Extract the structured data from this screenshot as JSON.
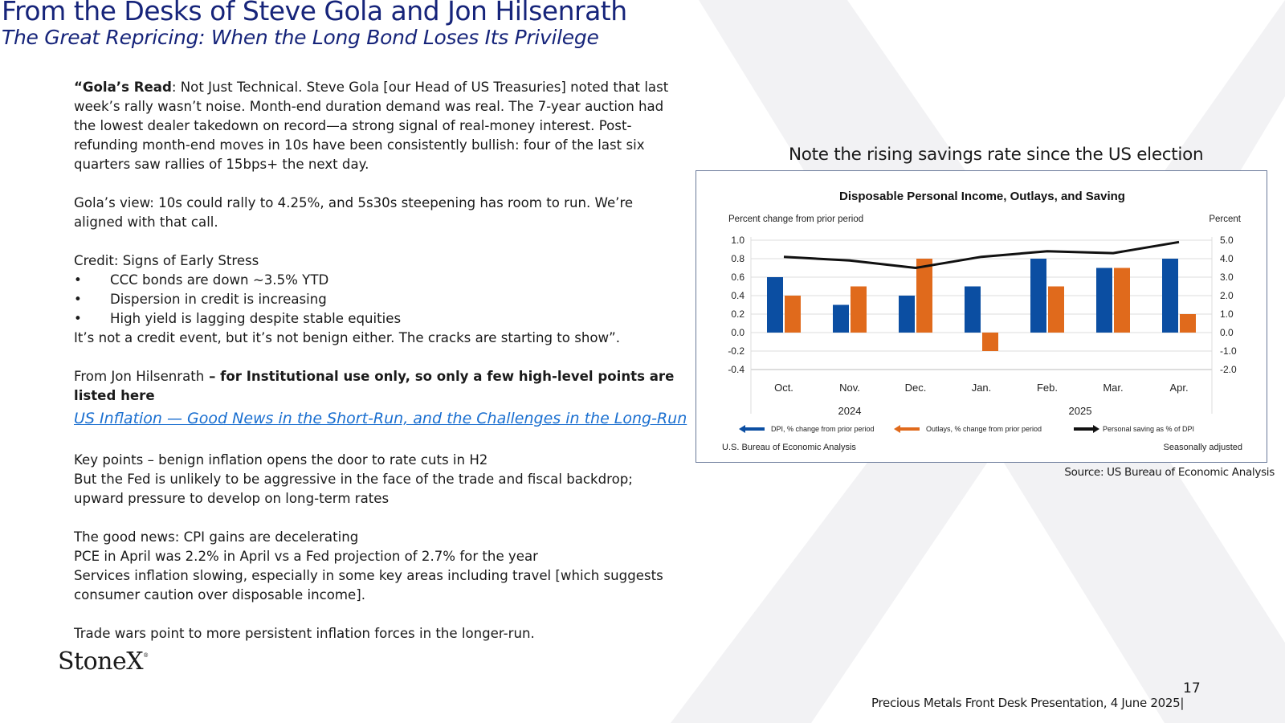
{
  "header": {
    "title": "From the Desks of Steve Gola and Jon Hilsenrath",
    "subtitle": "The Great Repricing: When the Long Bond Loses Its Privilege"
  },
  "body": {
    "gola_read_bold": "“Gola’s Read",
    "gola_read_text": ": Not Just Technical. Steve Gola [our Head of US Treasuries] noted that last week’s rally wasn’t noise. Month-end duration demand was real. The 7-year auction had the lowest dealer takedown on record—a strong signal of real-money interest. Post-refunding month-end moves in 10s have been consistently bullish: four of the last six quarters saw rallies of 15bps+ the next day.",
    "gola_view": "Gola’s view: 10s could rally to 4.25%, and 5s30s steepening has room to run. We’re aligned with that call.",
    "credit_heading": "Credit: Signs of Early Stress",
    "credit_bullets": [
      "CCC bonds are down ~3.5% YTD",
      "Dispersion in credit is increasing",
      "High yield is lagging despite stable equities"
    ],
    "credit_conclusion": "It’s not a credit event, but it’s not benign either. The cracks are starting to show”.",
    "hilsenrath_intro": "From Jon Hilsenrath",
    "hilsenrath_note": " – for Institutional use only, so only a few high-level  points are listed here",
    "link_text": "US Inflation — Good News in the Short-Run, and the Challenges in the Long-Run",
    "key_points": " Key points – benign inflation opens the door to rate cuts in H2",
    "fed_line": "But the Fed is unlikely to be aggressive in the face of the trade and fiscal backdrop; upward pressure to develop on long-term rates",
    "good_news": "The good news:  CPI gains are decelerating",
    "pce_line": "PCE in April was 2.2% in April vs a Fed projection of 2.7% for the year",
    "services_line": "Services inflation slowing, especially in some key areas including travel [which suggests consumer caution over disposable income].",
    "trade_line": "Trade wars point to more persistent inflation forces in the longer-run."
  },
  "logo": {
    "text": "StoneX",
    "mark": "®"
  },
  "chart_caption": "Note the rising savings rate since the US election",
  "chart_data": {
    "type": "bar",
    "title": "Disposable Personal Income, Outlays, and Saving",
    "left_axis_label": "Percent change from prior period",
    "right_axis_label": "Percent",
    "categories": [
      "Oct.",
      "Nov.",
      "Dec.",
      "Jan.",
      "Feb.",
      "Mar.",
      "Apr."
    ],
    "year_labels": [
      {
        "label": "2024",
        "categories": [
          "Oct.",
          "Nov.",
          "Dec."
        ]
      },
      {
        "label": "2025",
        "categories": [
          "Jan.",
          "Feb.",
          "Mar.",
          "Apr."
        ]
      }
    ],
    "ylim": [
      -0.4,
      1.0
    ],
    "y_ticks": [
      "1.0",
      "0.8",
      "0.6",
      "0.4",
      "0.2",
      "0.0",
      "-0.2",
      "-0.4"
    ],
    "y2lim": [
      -2.0,
      5.0
    ],
    "y2_ticks": [
      "5.0",
      "4.0",
      "3.0",
      "2.0",
      "1.0",
      "0.0",
      "-1.0",
      "-2.0"
    ],
    "grid": true,
    "series": [
      {
        "name": "DPI, % change from prior period",
        "kind": "bar",
        "axis": "left",
        "color": "#0b4ea2",
        "values": [
          0.6,
          0.3,
          0.4,
          0.5,
          0.8,
          0.7,
          0.8
        ]
      },
      {
        "name": "Outlays, % change from prior period",
        "kind": "bar",
        "axis": "left",
        "color": "#e06a1c",
        "values": [
          0.4,
          0.5,
          0.8,
          -0.2,
          0.5,
          0.7,
          0.2
        ]
      },
      {
        "name": "Personal saving as % of DPI",
        "kind": "line",
        "axis": "right",
        "color": "#111111",
        "values": [
          4.1,
          3.9,
          3.5,
          4.1,
          4.4,
          4.3,
          4.9
        ]
      }
    ],
    "footer_left": "U.S. Bureau of Economic Analysis",
    "footer_right": "Seasonally adjusted"
  },
  "source": "Source: US Bureau of Economic Analysis",
  "page_number": "17",
  "footer": "Precious Metals Front Desk Presentation, 4 June 2025|"
}
